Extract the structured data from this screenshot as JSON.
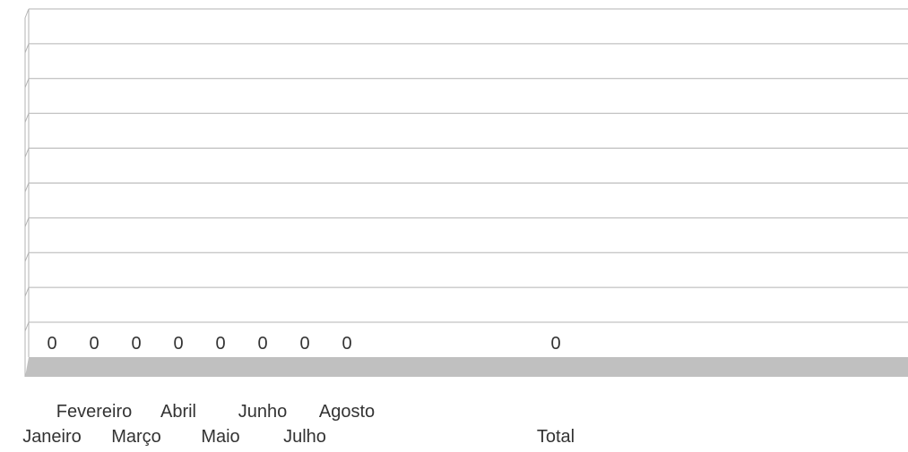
{
  "chart_data": {
    "type": "bar",
    "title": "",
    "xlabel": "",
    "ylabel": "",
    "categories": [
      "Janeiro",
      "Fevereiro",
      "Março",
      "Abril",
      "Maio",
      "Junho",
      "Julho",
      "Agosto",
      "Total"
    ],
    "values": [
      0,
      0,
      0,
      0,
      0,
      0,
      0,
      0,
      0
    ],
    "ylim": [
      0,
      1
    ],
    "grid": true,
    "legend": "none",
    "gridline_count": 10,
    "colors": {
      "gridline": "#b3b3b3",
      "floor": "#c0c0c0",
      "label": "#333333"
    }
  }
}
